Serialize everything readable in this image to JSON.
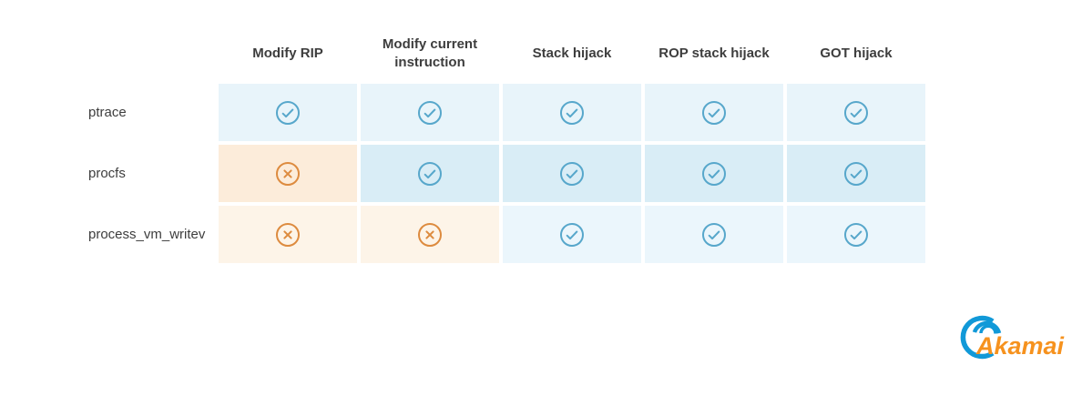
{
  "table": {
    "columns": [
      "Modify RIP",
      "Modify current instruction",
      "Stack hijack",
      "ROP stack hijack",
      "GOT hijack"
    ],
    "rows": [
      {
        "label": "ptrace",
        "cells": [
          "check",
          "check",
          "check",
          "check",
          "check"
        ]
      },
      {
        "label": "procfs",
        "cells": [
          "cross",
          "check",
          "check",
          "check",
          "check"
        ]
      },
      {
        "label": "process_vm_writev",
        "cells": [
          "cross",
          "cross",
          "check",
          "check",
          "check"
        ]
      }
    ]
  },
  "chart_data": {
    "type": "table",
    "columns": [
      "Modify RIP",
      "Modify current instruction",
      "Stack hijack",
      "ROP stack hijack",
      "GOT hijack"
    ],
    "rows": [
      {
        "label": "ptrace",
        "values": [
          "yes",
          "yes",
          "yes",
          "yes",
          "yes"
        ]
      },
      {
        "label": "procfs",
        "values": [
          "no",
          "yes",
          "yes",
          "yes",
          "yes"
        ]
      },
      {
        "label": "process_vm_writev",
        "values": [
          "no",
          "no",
          "yes",
          "yes",
          "yes"
        ]
      }
    ],
    "legend_position": "none",
    "grid": "off"
  },
  "icons": {
    "check": "check-circle-icon",
    "cross": "cross-circle-icon"
  },
  "colors": {
    "check_icon": "#57a7cb",
    "cross_icon": "#dd8b3f",
    "check_bg_by_row": [
      "#e8f4fa",
      "#d9edf6",
      "#ebf6fc"
    ],
    "cross_bg_by_row": [
      "#fcecda",
      "#fcecda",
      "#fdf4e8"
    ],
    "header_text": "#3d3d3d",
    "logo_blue": "#1199d8",
    "logo_orange": "#f6921e"
  },
  "logo": {
    "text": "Akamai"
  }
}
